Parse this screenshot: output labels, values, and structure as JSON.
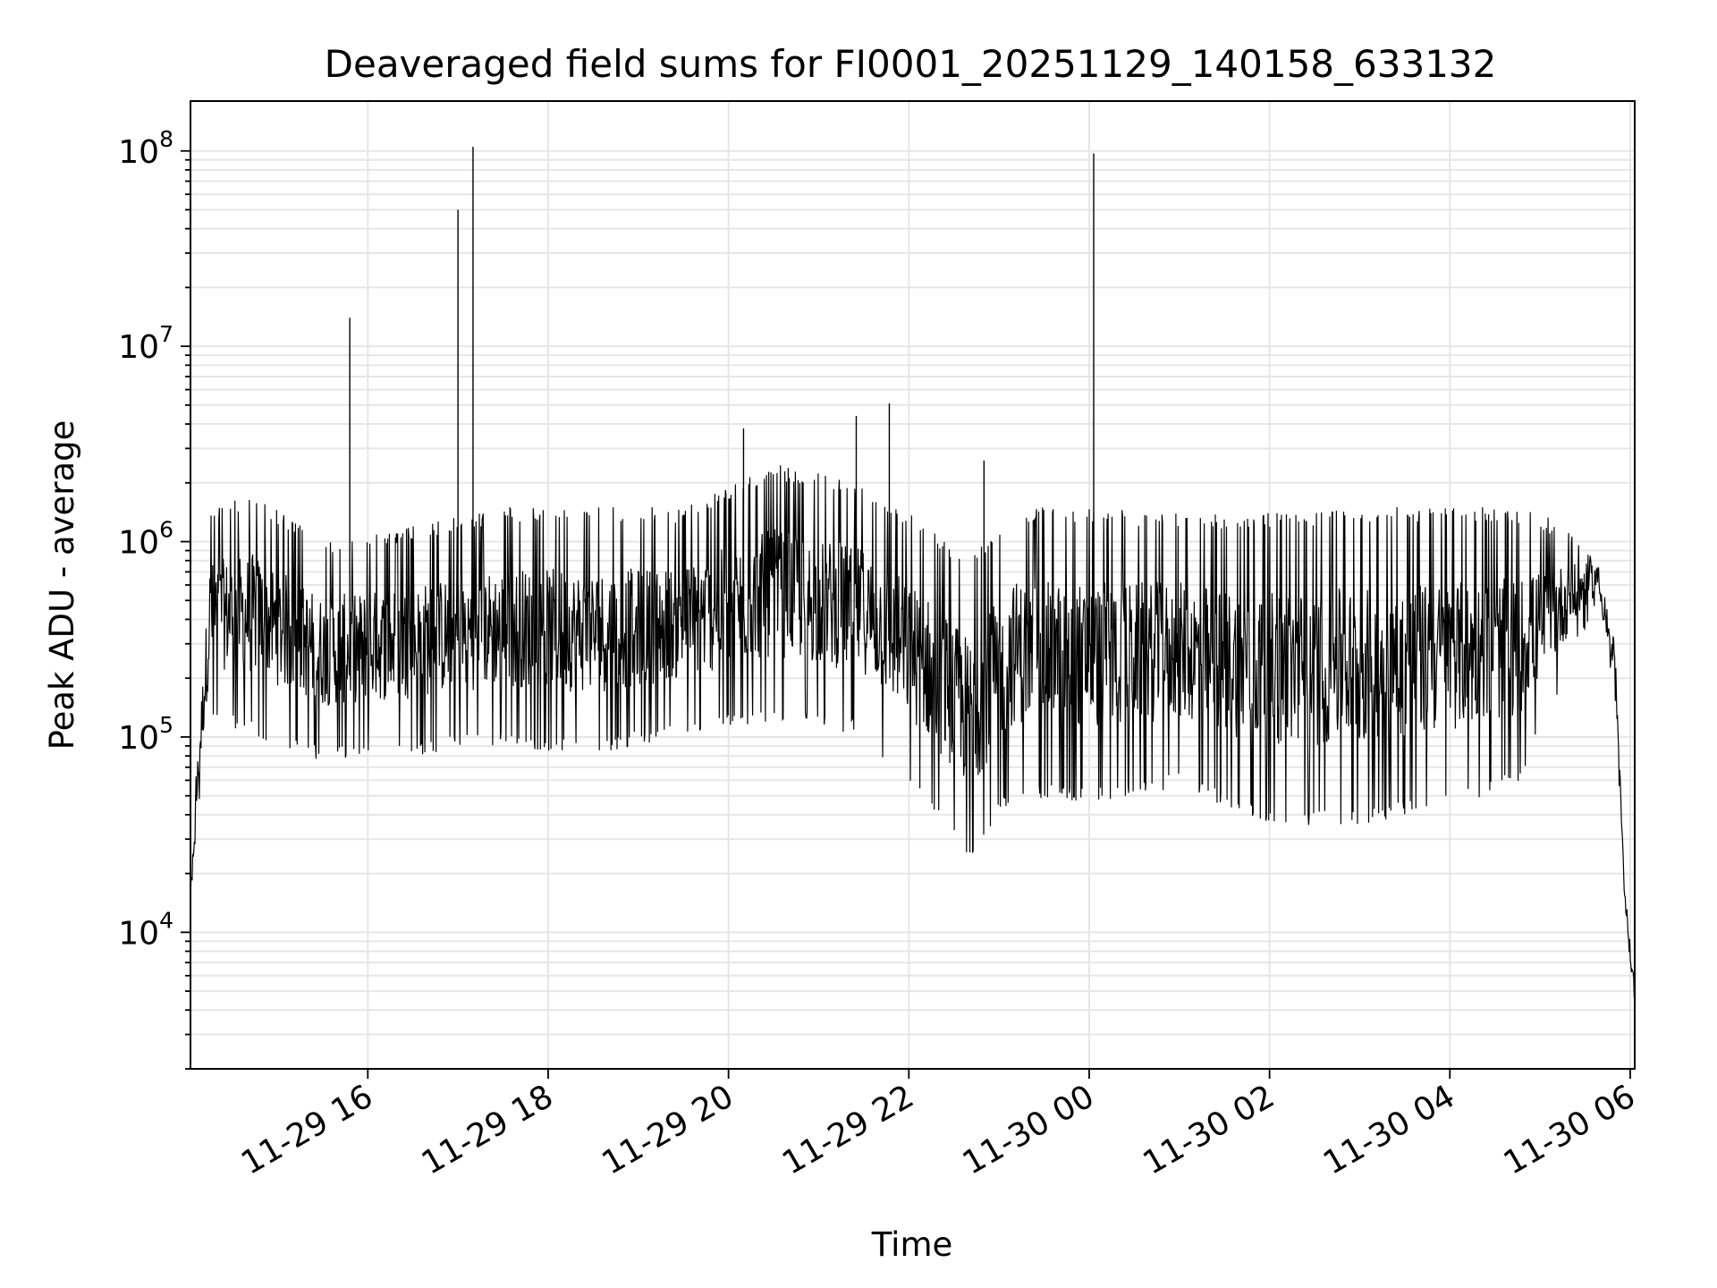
{
  "chart_data": {
    "type": "line",
    "title": "Deaveraged field sums for FI0001_20251129_140158_633132",
    "xlabel": "Time",
    "ylabel": "Peak ADU - average",
    "yscale": "log",
    "ylim": [
      2000,
      180000000
    ],
    "xlim": [
      "2025-11-29 14:02",
      "2025-11-30 06:03"
    ],
    "grid": true,
    "legend": "none",
    "line_color": "#000000",
    "x_ticks": [
      {
        "value": "2025-11-29 16:00",
        "label": "11-29 16"
      },
      {
        "value": "2025-11-29 18:00",
        "label": "11-29 18"
      },
      {
        "value": "2025-11-29 20:00",
        "label": "11-29 20"
      },
      {
        "value": "2025-11-29 22:00",
        "label": "11-29 22"
      },
      {
        "value": "2025-11-30 00:00",
        "label": "11-30 00"
      },
      {
        "value": "2025-11-30 02:00",
        "label": "11-30 02"
      },
      {
        "value": "2025-11-30 04:00",
        "label": "11-30 04"
      },
      {
        "value": "2025-11-30 06:00",
        "label": "11-30 06"
      }
    ],
    "y_ticks": [
      {
        "value": 10000,
        "base": "10",
        "exp": "4"
      },
      {
        "value": 100000,
        "base": "10",
        "exp": "5"
      },
      {
        "value": 1000000,
        "base": "10",
        "exp": "6"
      },
      {
        "value": 10000000,
        "base": "10",
        "exp": "7"
      },
      {
        "value": 100000000,
        "base": "10",
        "exp": "8"
      }
    ],
    "envelope": [
      {
        "t": "2025-11-29 14:02",
        "low": 12000,
        "high": 18000
      },
      {
        "t": "2025-11-29 14:07",
        "low": 40000,
        "high": 110000
      },
      {
        "t": "2025-11-29 14:15",
        "low": 120000,
        "high": 1500000
      },
      {
        "t": "2025-11-29 14:45",
        "low": 100000,
        "high": 1800000
      },
      {
        "t": "2025-11-29 15:30",
        "low": 75000,
        "high": 1000000
      },
      {
        "t": "2025-11-29 16:30",
        "low": 80000,
        "high": 1200000
      },
      {
        "t": "2025-11-29 17:30",
        "low": 90000,
        "high": 1500000
      },
      {
        "t": "2025-11-29 18:30",
        "low": 80000,
        "high": 1500000
      },
      {
        "t": "2025-11-29 19:30",
        "low": 100000,
        "high": 1500000
      },
      {
        "t": "2025-11-29 20:30",
        "low": 120000,
        "high": 2500000
      },
      {
        "t": "2025-11-29 21:30",
        "low": 100000,
        "high": 2000000
      },
      {
        "t": "2025-11-29 22:15",
        "low": 40000,
        "high": 1200000
      },
      {
        "t": "2025-11-29 22:40",
        "low": 22000,
        "high": 800000
      },
      {
        "t": "2025-11-29 23:10",
        "low": 50000,
        "high": 1500000
      },
      {
        "t": "2025-11-30 00:00",
        "low": 45000,
        "high": 1500000
      },
      {
        "t": "2025-11-30 01:00",
        "low": 55000,
        "high": 1400000
      },
      {
        "t": "2025-11-30 02:00",
        "low": 35000,
        "high": 1400000
      },
      {
        "t": "2025-11-30 03:00",
        "low": 35000,
        "high": 1500000
      },
      {
        "t": "2025-11-30 04:00",
        "low": 45000,
        "high": 1500000
      },
      {
        "t": "2025-11-30 04:45",
        "low": 55000,
        "high": 1500000
      },
      {
        "t": "2025-11-30 05:10",
        "low": 150000,
        "high": 1300000
      },
      {
        "t": "2025-11-30 05:38",
        "low": 500000,
        "high": 900000
      },
      {
        "t": "2025-11-30 05:50",
        "low": 150000,
        "high": 300000
      },
      {
        "t": "2025-11-30 05:56",
        "low": 15000,
        "high": 20000
      },
      {
        "t": "2025-11-30 06:03",
        "low": 3500,
        "high": 6000
      }
    ],
    "spikes": [
      {
        "t": "2025-11-29 15:48",
        "value": 14000000
      },
      {
        "t": "2025-11-29 17:00",
        "value": 50000000
      },
      {
        "t": "2025-11-29 17:10",
        "value": 105000000
      },
      {
        "t": "2025-11-29 20:10",
        "value": 3800000
      },
      {
        "t": "2025-11-29 21:25",
        "value": 4400000
      },
      {
        "t": "2025-11-29 21:47",
        "value": 5100000
      },
      {
        "t": "2025-11-29 22:50",
        "value": 2600000
      },
      {
        "t": "2025-11-30 00:03",
        "value": 97000000
      }
    ]
  }
}
